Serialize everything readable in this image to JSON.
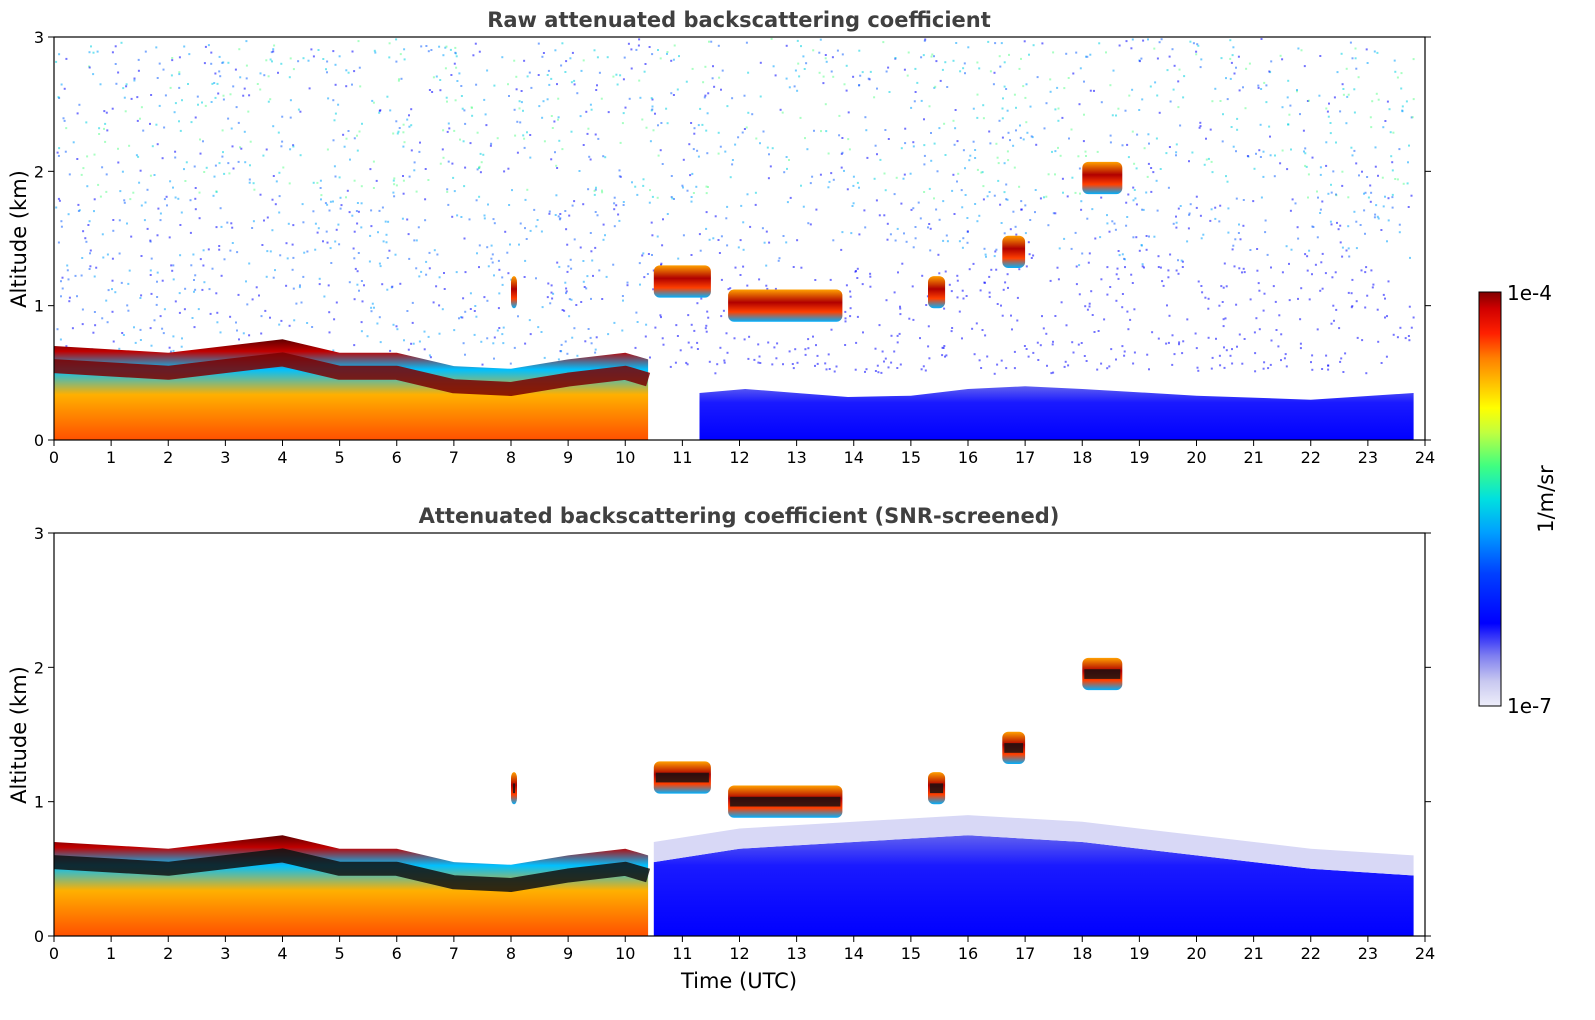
{
  "chart_data": [
    {
      "type": "heatmap",
      "title": "Raw attenuated backscattering coefficient",
      "xlabel": "",
      "ylabel": "Altitude (km)",
      "xlim": [
        0,
        24
      ],
      "ylim": [
        0,
        3
      ],
      "xticks": [
        "0",
        "1",
        "2",
        "3",
        "4",
        "5",
        "6",
        "7",
        "8",
        "9",
        "10",
        "11",
        "12",
        "13",
        "14",
        "15",
        "16",
        "17",
        "18",
        "19",
        "20",
        "21",
        "22",
        "23",
        "24"
      ],
      "yticks": [
        "0",
        "1",
        "2",
        "3"
      ],
      "boundary_layer": {
        "x": [
          0,
          2,
          3,
          4,
          5,
          6,
          7,
          8,
          9,
          10,
          10.4
        ],
        "top_km": [
          0.55,
          0.5,
          0.55,
          0.6,
          0.5,
          0.5,
          0.4,
          0.38,
          0.45,
          0.5,
          0.45
        ]
      },
      "aerosol_layers": [
        {
          "x": [
            11.3,
            12.1,
            13.0,
            13.9,
            15.0,
            16.0,
            17.0,
            18.0,
            20.0,
            22.0,
            23.8
          ],
          "top_km": [
            0.35,
            0.38,
            0.35,
            0.32,
            0.33,
            0.38,
            0.4,
            0.38,
            0.33,
            0.3,
            0.35
          ]
        }
      ],
      "cloud_layers": [
        {
          "x_start": 10.5,
          "x_end": 11.5,
          "altitude_km": 1.18
        },
        {
          "x_start": 11.8,
          "x_end": 13.8,
          "altitude_km": 1.0
        },
        {
          "x_start": 15.3,
          "x_end": 15.6,
          "altitude_km": 1.1
        },
        {
          "x_start": 16.6,
          "x_end": 17.0,
          "altitude_km": 1.4
        },
        {
          "x_start": 18.0,
          "x_end": 18.7,
          "altitude_km": 1.95
        },
        {
          "x_start": 8.0,
          "x_end": 8.1,
          "altitude_km": 1.1
        }
      ]
    },
    {
      "type": "heatmap",
      "title": "Attenuated backscattering coefficient (SNR-screened)",
      "xlabel": "Time (UTC)",
      "ylabel": "Altitude (km)",
      "xlim": [
        0,
        24
      ],
      "ylim": [
        0,
        3
      ],
      "xticks": [
        "0",
        "1",
        "2",
        "3",
        "4",
        "5",
        "6",
        "7",
        "8",
        "9",
        "10",
        "11",
        "12",
        "13",
        "14",
        "15",
        "16",
        "17",
        "18",
        "19",
        "20",
        "21",
        "22",
        "23",
        "24"
      ],
      "yticks": [
        "0",
        "1",
        "2",
        "3"
      ],
      "boundary_layer": {
        "x": [
          0,
          2,
          3,
          4,
          5,
          6,
          7,
          8,
          9,
          10,
          10.4
        ],
        "top_km": [
          0.55,
          0.5,
          0.55,
          0.6,
          0.5,
          0.5,
          0.4,
          0.38,
          0.45,
          0.5,
          0.45
        ]
      },
      "aerosol_layers": [
        {
          "x": [
            10.5,
            12,
            14,
            16,
            18,
            20,
            22,
            23.8
          ],
          "top_km": [
            0.55,
            0.65,
            0.7,
            0.75,
            0.7,
            0.6,
            0.5,
            0.45
          ]
        }
      ],
      "cloud_layers": [
        {
          "x_start": 10.5,
          "x_end": 11.5,
          "altitude_km": 1.18
        },
        {
          "x_start": 11.8,
          "x_end": 13.8,
          "altitude_km": 1.0
        },
        {
          "x_start": 15.3,
          "x_end": 15.6,
          "altitude_km": 1.1
        },
        {
          "x_start": 16.6,
          "x_end": 17.0,
          "altitude_km": 1.4
        },
        {
          "x_start": 18.0,
          "x_end": 18.7,
          "altitude_km": 1.95
        },
        {
          "x_start": 8.0,
          "x_end": 8.1,
          "altitude_km": 1.1
        }
      ]
    }
  ],
  "colorbar": {
    "label": "1/m/sr",
    "max_label": "1e-4",
    "min_label": "1e-7",
    "colormap": [
      "#e8e8f8",
      "#c8c8f0",
      "#8080f0",
      "#0000ff",
      "#0040ff",
      "#00a0ff",
      "#00e0e0",
      "#40ff80",
      "#c0ff40",
      "#ffff00",
      "#ffc000",
      "#ff8000",
      "#ff2000",
      "#d00000",
      "#800000"
    ]
  }
}
